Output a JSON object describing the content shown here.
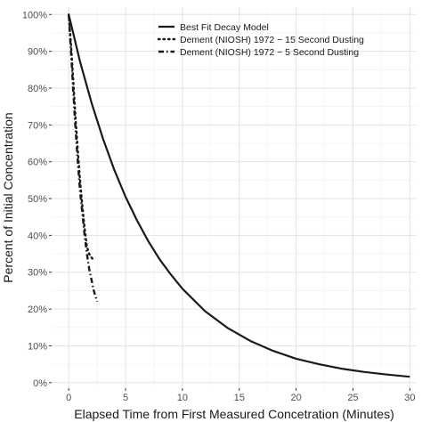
{
  "chart_data": {
    "type": "line",
    "xlabel": "Elapsed Time from First Measured Concetration (Minutes)",
    "ylabel": "Percent of Initial Concentration",
    "xlim": [
      -1.5,
      30.6
    ],
    "ylim": [
      -1.5,
      102
    ],
    "x_ticks": [
      0,
      5,
      10,
      15,
      20,
      25,
      30
    ],
    "x_tick_labels": [
      "0",
      "5",
      "10",
      "15",
      "20",
      "25",
      "30"
    ],
    "y_ticks": [
      0,
      10,
      20,
      30,
      40,
      50,
      60,
      70,
      80,
      90,
      100
    ],
    "y_tick_labels": [
      "0%",
      "10%",
      "20%",
      "30%",
      "40%",
      "50%",
      "60%",
      "70%",
      "80%",
      "90%",
      "100%"
    ],
    "grid": true,
    "legend_position": "top-right",
    "series": [
      {
        "name": "Best Fit Decay Model",
        "style": "solid",
        "color": "#1a1a1a",
        "x": [
          0,
          1,
          2,
          3,
          4,
          5,
          6,
          7,
          8,
          9,
          10,
          12,
          14,
          16,
          18,
          20,
          22,
          24,
          26,
          28,
          30
        ],
        "y": [
          100,
          87.2,
          76.1,
          66.4,
          57.9,
          50.5,
          44.1,
          38.4,
          33.5,
          29.3,
          25.5,
          19.4,
          14.8,
          11.3,
          8.6,
          6.5,
          5.0,
          3.8,
          2.9,
          2.2,
          1.6
        ]
      },
      {
        "name": "Dement (NIOSH) 1972 − 15 Second Dusting",
        "style": "dotted",
        "color": "#1a1a1a",
        "x": [
          0,
          0.2,
          0.4,
          0.6,
          0.8,
          1.0,
          1.2,
          1.4,
          1.6,
          1.8,
          2.0,
          2.3
        ],
        "y": [
          100,
          92,
          82,
          72,
          63,
          55,
          48,
          42,
          37,
          35,
          34,
          33
        ]
      },
      {
        "name": "Dement (NIOSH) 1972 − 5 Second Dusting",
        "style": "dashdot",
        "color": "#1a1a1a",
        "x": [
          0,
          0.2,
          0.4,
          0.6,
          0.8,
          1.0,
          1.2,
          1.4,
          1.6,
          1.8,
          2.0,
          2.2,
          2.5
        ],
        "y": [
          100,
          90,
          79,
          69,
          60,
          52,
          46,
          40,
          35,
          31,
          28,
          25,
          22
        ]
      }
    ]
  }
}
